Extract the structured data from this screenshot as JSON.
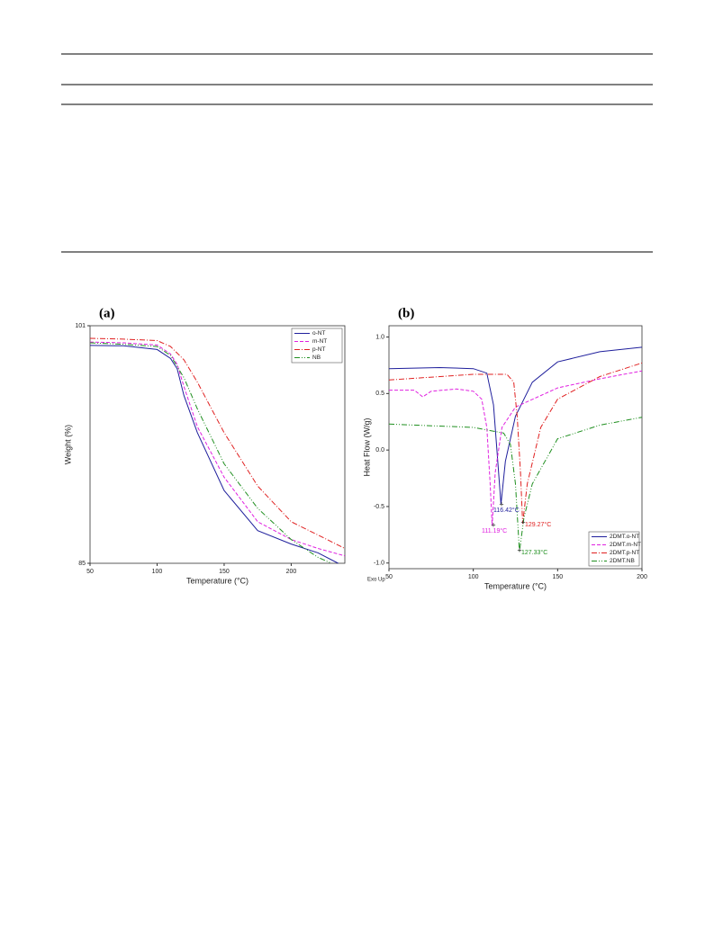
{
  "chart_data": [
    {
      "type": "line",
      "panel": "(a)",
      "xlabel": "Temperature (°C)",
      "ylabel": "Weight (%)",
      "xlim": [
        50,
        240
      ],
      "xticks": [
        50,
        100,
        150,
        200
      ],
      "ylim": [
        85,
        101
      ],
      "yticks": [
        85,
        101
      ],
      "legend": "upper right",
      "series": [
        {
          "name": "o-NT",
          "color": "#1f1f9c",
          "dash": "solid",
          "x": [
            50,
            75,
            100,
            110,
            115,
            120,
            130,
            150,
            175,
            200,
            220,
            235
          ],
          "values": [
            99.67,
            99.65,
            99.4,
            98.8,
            98.1,
            96.3,
            93.8,
            89.9,
            87.2,
            86.3,
            85.7,
            85
          ]
        },
        {
          "name": "m-NT",
          "color": "#e020e0",
          "dash": "dashed",
          "x": [
            50,
            75,
            100,
            110,
            115,
            120,
            130,
            150,
            175,
            200,
            220,
            240
          ],
          "values": [
            99.9,
            99.85,
            99.7,
            99.1,
            98.4,
            96.9,
            94.2,
            90.8,
            87.8,
            86.6,
            86,
            85.5
          ]
        },
        {
          "name": "p-NT",
          "color": "#e02020",
          "dash": "dashdot",
          "x": [
            50,
            75,
            100,
            110,
            120,
            130,
            150,
            175,
            200,
            220,
            240
          ],
          "values": [
            100.15,
            100.1,
            100.0,
            99.6,
            98.7,
            97.2,
            93.8,
            90.2,
            87.8,
            86.9,
            86
          ]
        },
        {
          "name": "NB",
          "color": "#1f8f1f",
          "dash": "dashdotdot",
          "x": [
            50,
            75,
            100,
            110,
            120,
            130,
            150,
            175,
            200,
            220,
            230
          ],
          "values": [
            99.85,
            99.75,
            99.6,
            99,
            97.5,
            95.4,
            91.7,
            88.7,
            86.6,
            85.4,
            85
          ]
        }
      ]
    },
    {
      "type": "line",
      "panel": "(b)",
      "xlabel": "Temperature (°C)",
      "ylabel": "Heat Flow (W/g)",
      "xlim": [
        50,
        200
      ],
      "xticks": [
        50,
        100,
        150,
        200
      ],
      "ylim": [
        -1.05,
        1.1
      ],
      "yticks": [
        {
          "value": 1,
          "label": "1.0"
        },
        0.5,
        {
          "value": 0,
          "label": "0.0"
        },
        -0.5,
        {
          "value": -1,
          "label": "-1.0"
        }
      ],
      "legend": "lower right",
      "note": "Exo Up",
      "annotations": [
        "116.42°C",
        "111.19°C",
        "129.27°C",
        "127.33°C"
      ],
      "series": [
        {
          "name": "2DMT.o-NT",
          "color": "#1f1f9c",
          "dash": "solid",
          "x": [
            50,
            80,
            100,
            108,
            112,
            114,
            116.42,
            119,
            125,
            135,
            150,
            175,
            200
          ],
          "values": [
            0.72,
            0.73,
            0.72,
            0.68,
            0.4,
            0,
            -0.48,
            -0.1,
            0.3,
            0.6,
            0.78,
            0.87,
            0.91
          ]
        },
        {
          "name": "2DMT.m-NT",
          "color": "#e020e0",
          "dash": "dashed",
          "x": [
            50,
            65,
            70,
            75,
            90,
            100,
            105,
            108,
            110,
            111.19,
            113,
            117,
            125,
            150,
            175,
            200
          ],
          "values": [
            0.53,
            0.53,
            0.47,
            0.52,
            0.54,
            0.52,
            0.45,
            0.2,
            -0.3,
            -0.67,
            -0.2,
            0.2,
            0.38,
            0.55,
            0.63,
            0.7
          ]
        },
        {
          "name": "2DMT.p-NT",
          "color": "#e02020",
          "dash": "dashdot",
          "x": [
            50,
            100,
            120,
            124,
            126,
            128,
            129.27,
            132,
            140,
            150,
            175,
            200
          ],
          "values": [
            0.62,
            0.67,
            0.67,
            0.6,
            0.3,
            -0.2,
            -0.65,
            -0.3,
            0.2,
            0.45,
            0.65,
            0.77
          ]
        },
        {
          "name": "2DMT.NB",
          "color": "#1f8f1f",
          "dash": "dashdotdot",
          "x": [
            50,
            100,
            118,
            122,
            125,
            127.33,
            130,
            135,
            150,
            175,
            200
          ],
          "values": [
            0.23,
            0.2,
            0.15,
            0.05,
            -0.3,
            -0.9,
            -0.6,
            -0.3,
            0.1,
            0.22,
            0.29
          ]
        }
      ]
    }
  ]
}
